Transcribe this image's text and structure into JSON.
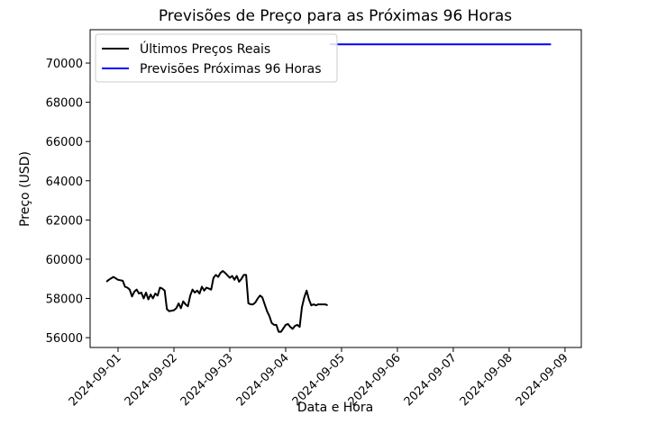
{
  "chart_data": {
    "type": "line",
    "title": "Previsões de Preço para as Próximas 96 Horas",
    "xlabel": "Data e Hora",
    "ylabel": "Preço (USD)",
    "xlim": [
      "2024-08-31T12:00",
      "2024-09-09T07:00"
    ],
    "ylim": [
      55500,
      71700
    ],
    "grid": false,
    "legend_position": "top-left",
    "x_ticks": [
      "2024-09-01",
      "2024-09-02",
      "2024-09-03",
      "2024-09-04",
      "2024-09-05",
      "2024-09-06",
      "2024-09-07",
      "2024-09-08",
      "2024-09-09"
    ],
    "y_ticks": [
      56000,
      58000,
      60000,
      62000,
      64000,
      66000,
      68000,
      70000
    ],
    "series": [
      {
        "name": "Últimos Preços Reais",
        "color": "#000000",
        "x": [
          "2024-08-31T19:00",
          "2024-08-31T20:00",
          "2024-08-31T22:00",
          "2024-09-01T00:00",
          "2024-09-01T02:00",
          "2024-09-01T03:00",
          "2024-09-01T04:00",
          "2024-09-01T05:00",
          "2024-09-01T06:00",
          "2024-09-01T07:00",
          "2024-09-01T08:00",
          "2024-09-01T09:00",
          "2024-09-01T10:00",
          "2024-09-01T11:00",
          "2024-09-01T12:00",
          "2024-09-01T13:00",
          "2024-09-01T14:00",
          "2024-09-01T15:00",
          "2024-09-01T16:00",
          "2024-09-01T17:00",
          "2024-09-01T18:00",
          "2024-09-01T19:00",
          "2024-09-01T20:00",
          "2024-09-01T21:00",
          "2024-09-01T22:00",
          "2024-09-02T00:00",
          "2024-09-02T01:00",
          "2024-09-02T02:00",
          "2024-09-02T03:00",
          "2024-09-02T04:00",
          "2024-09-02T05:00",
          "2024-09-02T06:00",
          "2024-09-02T07:00",
          "2024-09-02T08:00",
          "2024-09-02T09:00",
          "2024-09-02T10:00",
          "2024-09-02T11:00",
          "2024-09-02T12:00",
          "2024-09-02T13:00",
          "2024-09-02T14:00",
          "2024-09-02T15:00",
          "2024-09-02T16:00",
          "2024-09-02T17:00",
          "2024-09-02T18:00",
          "2024-09-02T19:00",
          "2024-09-02T20:00",
          "2024-09-02T21:00",
          "2024-09-02T22:00",
          "2024-09-03T00:00",
          "2024-09-03T01:00",
          "2024-09-03T02:00",
          "2024-09-03T03:00",
          "2024-09-03T04:00",
          "2024-09-03T05:00",
          "2024-09-03T06:00",
          "2024-09-03T07:00",
          "2024-09-03T08:00",
          "2024-09-03T09:00",
          "2024-09-03T10:00",
          "2024-09-03T11:00",
          "2024-09-03T12:00",
          "2024-09-03T13:00",
          "2024-09-03T14:00",
          "2024-09-03T15:00",
          "2024-09-03T16:00",
          "2024-09-03T17:00",
          "2024-09-03T18:00",
          "2024-09-03T19:00",
          "2024-09-03T20:00",
          "2024-09-03T21:00",
          "2024-09-03T22:00",
          "2024-09-04T00:00",
          "2024-09-04T01:00",
          "2024-09-04T02:00",
          "2024-09-04T03:00",
          "2024-09-04T04:00",
          "2024-09-04T05:00",
          "2024-09-04T06:00",
          "2024-09-04T07:00",
          "2024-09-04T08:00",
          "2024-09-04T09:00",
          "2024-09-04T10:00",
          "2024-09-04T11:00",
          "2024-09-04T12:00",
          "2024-09-04T13:00",
          "2024-09-04T14:00",
          "2024-09-04T15:00",
          "2024-09-04T16:00",
          "2024-09-04T17:00",
          "2024-09-04T18:00"
        ],
        "y": [
          58850,
          58950,
          59100,
          58950,
          58900,
          58600,
          58550,
          58450,
          58100,
          58350,
          58450,
          58250,
          58300,
          58000,
          58300,
          57950,
          58200,
          58000,
          58250,
          58150,
          58550,
          58500,
          58400,
          57450,
          57350,
          57400,
          57500,
          57750,
          57500,
          57850,
          57700,
          57600,
          58150,
          58450,
          58300,
          58400,
          58250,
          58600,
          58400,
          58550,
          58500,
          58450,
          59050,
          59200,
          59100,
          59300,
          59400,
          59300,
          59050,
          59150,
          58950,
          59150,
          58850,
          59000,
          59200,
          59200,
          57750,
          57700,
          57700,
          57800,
          58000,
          58150,
          58050,
          57700,
          57350,
          57100,
          56750,
          56650,
          56650,
          56300,
          56300,
          56650,
          56700,
          56550,
          56450,
          56600,
          56650,
          56550,
          57550,
          58050,
          58400,
          57950,
          57650,
          57700,
          57650,
          57700,
          57700,
          57700,
          57700,
          57650
        ],
        "linewidth": 2
      },
      {
        "name": "Previsões Próximas 96 Horas",
        "color": "#0000ff",
        "x": [
          "2024-09-04T19:00",
          "2024-09-08T18:00"
        ],
        "y": [
          70950,
          70950
        ],
        "linewidth": 2
      }
    ]
  }
}
